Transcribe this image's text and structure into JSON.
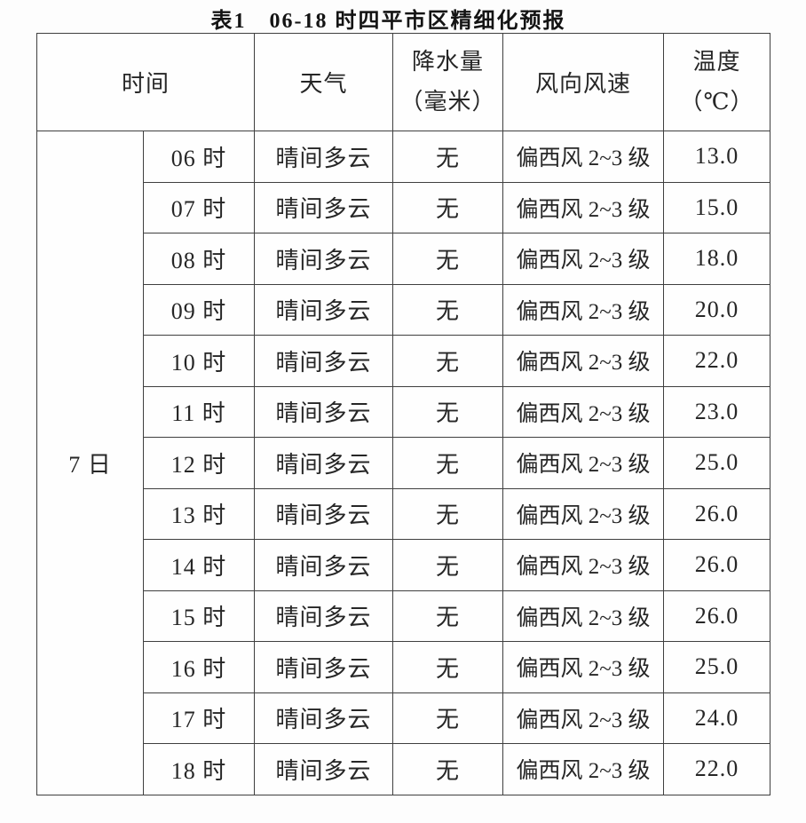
{
  "page": {
    "title": "表1　06-18 时四平市区精细化预报"
  },
  "chart_data": {
    "type": "table",
    "title": "表1　06-18 时四平市区精细化预报",
    "columns": {
      "time": "时间",
      "weather": "天气",
      "precipitation_line1": "降水量",
      "precipitation_line2": "（毫米）",
      "wind": "风向风速",
      "temperature_line1": "温度",
      "temperature_line2": "（℃）"
    },
    "date_label": "7 日",
    "rows": [
      {
        "hour": "06 时",
        "weather": "晴间多云",
        "precipitation": "无",
        "wind": "偏西风 2~3 级",
        "temperature": "13.0"
      },
      {
        "hour": "07 时",
        "weather": "晴间多云",
        "precipitation": "无",
        "wind": "偏西风 2~3 级",
        "temperature": "15.0"
      },
      {
        "hour": "08 时",
        "weather": "晴间多云",
        "precipitation": "无",
        "wind": "偏西风 2~3 级",
        "temperature": "18.0"
      },
      {
        "hour": "09 时",
        "weather": "晴间多云",
        "precipitation": "无",
        "wind": "偏西风 2~3 级",
        "temperature": "20.0"
      },
      {
        "hour": "10 时",
        "weather": "晴间多云",
        "precipitation": "无",
        "wind": "偏西风 2~3 级",
        "temperature": "22.0"
      },
      {
        "hour": "11 时",
        "weather": "晴间多云",
        "precipitation": "无",
        "wind": "偏西风 2~3 级",
        "temperature": "23.0"
      },
      {
        "hour": "12 时",
        "weather": "晴间多云",
        "precipitation": "无",
        "wind": "偏西风 2~3 级",
        "temperature": "25.0"
      },
      {
        "hour": "13 时",
        "weather": "晴间多云",
        "precipitation": "无",
        "wind": "偏西风 2~3 级",
        "temperature": "26.0"
      },
      {
        "hour": "14 时",
        "weather": "晴间多云",
        "precipitation": "无",
        "wind": "偏西风 2~3 级",
        "temperature": "26.0"
      },
      {
        "hour": "15 时",
        "weather": "晴间多云",
        "precipitation": "无",
        "wind": "偏西风 2~3 级",
        "temperature": "26.0"
      },
      {
        "hour": "16 时",
        "weather": "晴间多云",
        "precipitation": "无",
        "wind": "偏西风 2~3 级",
        "temperature": "25.0"
      },
      {
        "hour": "17 时",
        "weather": "晴间多云",
        "precipitation": "无",
        "wind": "偏西风 2~3 级",
        "temperature": "24.0"
      },
      {
        "hour": "18 时",
        "weather": "晴间多云",
        "precipitation": "无",
        "wind": "偏西风 2~3 级",
        "temperature": "22.0"
      }
    ],
    "temperature_series": {
      "hours": [
        "06",
        "07",
        "08",
        "09",
        "10",
        "11",
        "12",
        "13",
        "14",
        "15",
        "16",
        "17",
        "18"
      ],
      "values": [
        13.0,
        15.0,
        18.0,
        20.0,
        22.0,
        23.0,
        25.0,
        26.0,
        26.0,
        26.0,
        25.0,
        24.0,
        22.0
      ],
      "unit": "℃"
    }
  },
  "colors": {
    "background": "#fdfdfd",
    "cell_background": "#fefefe",
    "border": "#3f3f3f",
    "text": "#262626"
  }
}
